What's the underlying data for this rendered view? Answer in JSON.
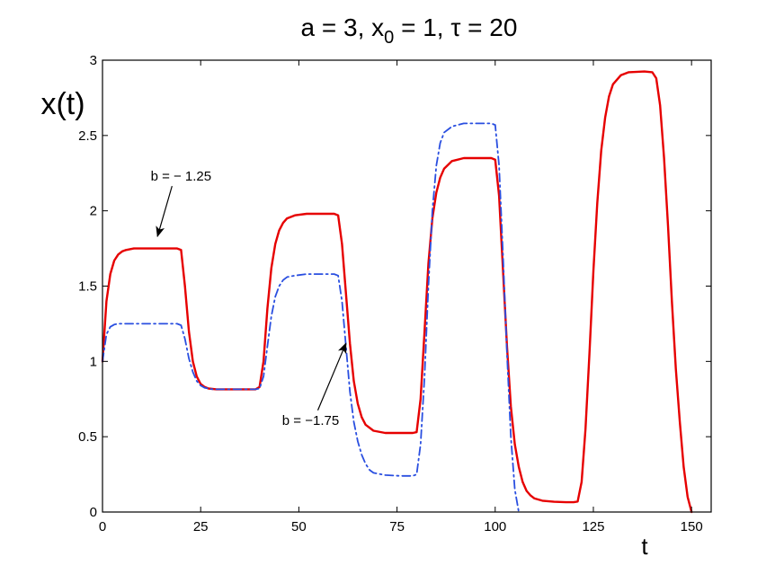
{
  "chart_data": {
    "type": "line",
    "title": {
      "main": "a = 3, x",
      "sub": "0",
      "rest": " = 1, τ = 20"
    },
    "xlabel": "t",
    "ylabel": "x(t)",
    "xlim": [
      0,
      155
    ],
    "ylim": [
      0,
      3
    ],
    "xticks": [
      0,
      25,
      50,
      75,
      100,
      125,
      150
    ],
    "yticks": [
      0,
      0.5,
      1,
      1.5,
      2,
      2.5,
      3
    ],
    "grid": false,
    "series": [
      {
        "name": "b = − 1.25",
        "color": "#e60000",
        "style": "solid",
        "x": [
          0,
          1,
          2,
          3,
          4,
          5,
          6,
          8,
          12,
          16,
          19,
          20,
          21,
          22,
          23,
          24,
          25,
          26,
          27,
          29,
          32,
          36,
          39,
          40,
          41,
          42,
          43,
          44,
          45,
          46,
          47,
          49,
          52,
          56,
          59,
          60,
          61,
          62,
          63,
          64,
          65,
          66,
          67,
          69,
          72,
          76,
          79,
          80,
          81,
          82,
          83,
          84,
          85,
          86,
          87,
          89,
          92,
          96,
          99,
          100,
          101,
          102,
          103,
          104,
          105,
          106,
          107,
          108,
          109,
          110,
          112,
          115,
          118,
          120,
          121,
          122,
          123,
          124,
          125,
          126,
          127,
          128,
          129,
          130,
          132,
          134,
          138,
          140,
          141,
          142,
          143,
          144,
          145,
          146,
          147,
          148,
          149,
          150
        ],
        "y": [
          1.0,
          1.4,
          1.58,
          1.67,
          1.71,
          1.73,
          1.74,
          1.75,
          1.75,
          1.75,
          1.75,
          1.74,
          1.5,
          1.2,
          1.0,
          0.9,
          0.85,
          0.83,
          0.82,
          0.815,
          0.815,
          0.815,
          0.815,
          0.83,
          1.0,
          1.35,
          1.62,
          1.78,
          1.87,
          1.92,
          1.95,
          1.97,
          1.98,
          1.98,
          1.98,
          1.97,
          1.78,
          1.45,
          1.12,
          0.87,
          0.72,
          0.63,
          0.58,
          0.54,
          0.525,
          0.525,
          0.525,
          0.53,
          0.75,
          1.2,
          1.65,
          1.95,
          2.12,
          2.22,
          2.28,
          2.33,
          2.35,
          2.35,
          2.35,
          2.34,
          2.1,
          1.6,
          1.1,
          0.7,
          0.45,
          0.3,
          0.2,
          0.14,
          0.11,
          0.09,
          0.075,
          0.068,
          0.065,
          0.065,
          0.07,
          0.2,
          0.55,
          1.05,
          1.6,
          2.05,
          2.4,
          2.62,
          2.76,
          2.84,
          2.9,
          2.92,
          2.925,
          2.92,
          2.88,
          2.7,
          2.35,
          1.9,
          1.4,
          0.95,
          0.6,
          0.3,
          0.1,
          0.0
        ]
      },
      {
        "name": "b = −1.75",
        "color": "#2a4fe0",
        "style": "dashdot",
        "x": [
          0,
          1,
          2,
          3,
          4,
          6,
          10,
          16,
          19,
          20,
          21,
          22,
          23,
          24,
          25,
          26,
          28,
          32,
          36,
          39,
          40,
          41,
          42,
          43,
          44,
          45,
          46,
          47,
          49,
          52,
          56,
          59,
          60,
          61,
          62,
          63,
          64,
          65,
          66,
          67,
          68,
          69,
          72,
          76,
          79,
          80,
          81,
          82,
          83,
          84,
          85,
          86,
          87,
          89,
          92,
          96,
          99,
          100,
          101,
          102,
          103,
          104,
          105,
          106
        ],
        "y": [
          1.0,
          1.18,
          1.23,
          1.245,
          1.25,
          1.25,
          1.25,
          1.25,
          1.25,
          1.24,
          1.15,
          1.02,
          0.93,
          0.87,
          0.84,
          0.825,
          0.815,
          0.815,
          0.815,
          0.815,
          0.82,
          0.9,
          1.1,
          1.3,
          1.43,
          1.5,
          1.54,
          1.56,
          1.57,
          1.58,
          1.58,
          1.58,
          1.57,
          1.4,
          1.1,
          0.8,
          0.6,
          0.47,
          0.38,
          0.32,
          0.28,
          0.26,
          0.245,
          0.24,
          0.24,
          0.25,
          0.45,
          0.9,
          1.5,
          2.0,
          2.3,
          2.45,
          2.52,
          2.56,
          2.58,
          2.58,
          2.58,
          2.57,
          2.3,
          1.7,
          1.05,
          0.5,
          0.15,
          0.0
        ]
      }
    ],
    "annotations": [
      {
        "text": "b = − 1.25",
        "x": 14,
        "y": 1.83,
        "label_x": 20,
        "label_y": 2.2
      },
      {
        "text": "b = −1.75",
        "x": 62,
        "y": 1.12,
        "label_x": 53,
        "label_y": 0.58
      }
    ]
  }
}
